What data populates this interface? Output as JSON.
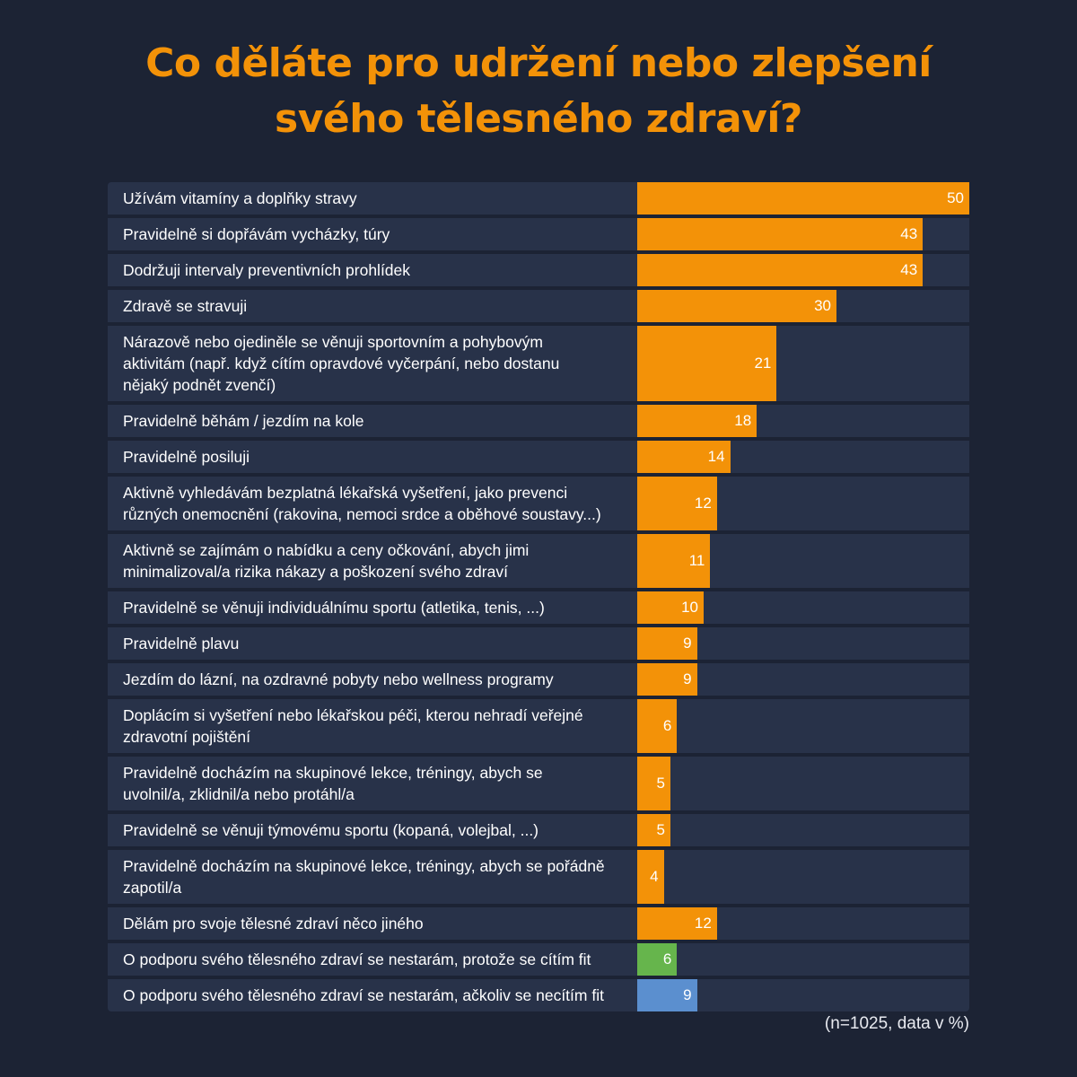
{
  "chart_data": {
    "type": "bar",
    "orientation": "horizontal",
    "title": "Co děláte pro udržení nebo zlepšení\nsvého tělesného zdraví?",
    "note": "(n=1025, data v %)",
    "xlim": [
      0,
      50
    ],
    "grid": false,
    "colors": {
      "default": "#f39208",
      "green": "#66b54c",
      "blue": "#5b8fcf",
      "background": "#1c2334",
      "row": "#283249"
    },
    "categories": [
      "Užívám vitamíny a doplňky stravy",
      "Pravidelně si dopřávám vycházky, túry",
      "Dodržuji intervaly preventivních prohlídek",
      "Zdravě se stravuji",
      "Nárazově nebo ojediněle se věnuji sportovním a pohybovým\naktivitám (např. když cítím opravdové vyčerpání, nebo dostanu\nnějaký podnět zvenčí)",
      "Pravidelně běhám / jezdím na kole",
      "Pravidelně posiluji",
      "Aktivně vyhledávám bezplatná lékařská vyšetření, jako prevenci\nrůzných onemocnění (rakovina, nemoci srdce a oběhové soustavy...)",
      "Aktivně se zajímám o nabídku a ceny očkování, abych jimi\nminimalizoval/a rizika nákazy a poškození svého zdraví",
      "Pravidelně se věnuji individuálnímu sportu (atletika, tenis, ...)",
      "Pravidelně plavu",
      "Jezdím do lázní, na ozdravné pobyty nebo wellness programy",
      "Doplácím si vyšetření nebo lékařskou péči, kterou nehradí veřejné\nzdravotní pojištění",
      "Pravidelně docházím na skupinové lekce, tréningy, abych se\nuvolnil/a, zklidnil/a nebo protáhl/a",
      "Pravidelně se věnuji týmovému sportu (kopaná, volejbal, ...)",
      "Pravidelně docházím na skupinové lekce, tréningy, abych se pořádně\nzapotil/a",
      "Dělám pro svoje tělesné zdraví něco jiného",
      "O podporu svého tělesného zdraví se nestarám, protože se cítím fit",
      "O podporu svého tělesného zdraví se nestarám, ačkoliv se necítím fit"
    ],
    "values": [
      50,
      43,
      43,
      30,
      21,
      18,
      14,
      12,
      11,
      10,
      9,
      9,
      6,
      5,
      5,
      4,
      12,
      6,
      9
    ],
    "bar_colors": [
      "default",
      "default",
      "default",
      "default",
      "default",
      "default",
      "default",
      "default",
      "default",
      "default",
      "default",
      "default",
      "default",
      "default",
      "default",
      "default",
      "default",
      "green",
      "blue"
    ]
  }
}
